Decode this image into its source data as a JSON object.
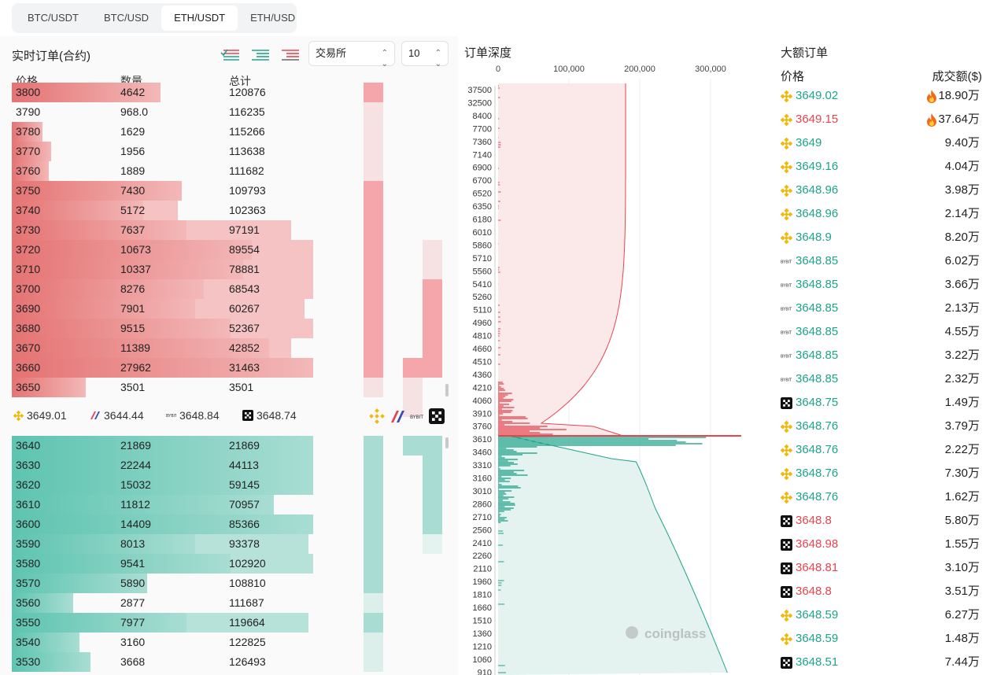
{
  "tabs": [
    {
      "label": "BTC/USDT",
      "active": false
    },
    {
      "label": "BTC/USD",
      "active": false
    },
    {
      "label": "ETH/USDT",
      "active": true
    },
    {
      "label": "ETH/USD",
      "active": false
    }
  ],
  "orderbook": {
    "title": "实时订单(合约)",
    "exchange_select": "交易所",
    "depth_select": "10",
    "headers": {
      "price": "价格",
      "qty": "数量",
      "total": "总计"
    },
    "colors": {
      "ask_bar": "#e57373",
      "ask_light": "#f3b8b8",
      "bid_bar": "#5dc4b0",
      "bid_light": "#a9ddd3"
    },
    "asks": [
      {
        "price": "3800",
        "qty": "4642",
        "total": "120876",
        "vol_frac": 0.34,
        "tot_frac": 0
      },
      {
        "price": "3790",
        "qty": "968.0",
        "total": "116235",
        "vol_frac": 0.0,
        "tot_frac": 0
      },
      {
        "price": "3780",
        "qty": "1629",
        "total": "115266",
        "vol_frac": 0.07,
        "tot_frac": 0
      },
      {
        "price": "3770",
        "qty": "1956",
        "total": "113638",
        "vol_frac": 0.09,
        "tot_frac": 0
      },
      {
        "price": "3760",
        "qty": "1889",
        "total": "111682",
        "vol_frac": 0.085,
        "tot_frac": 0
      },
      {
        "price": "3750",
        "qty": "7430",
        "total": "109793",
        "vol_frac": 0.39,
        "tot_frac": 0.39
      },
      {
        "price": "3740",
        "qty": "5172",
        "total": "102363",
        "vol_frac": 0.3,
        "tot_frac": 0.38
      },
      {
        "price": "3730",
        "qty": "7637",
        "total": "97191",
        "vol_frac": 0.4,
        "tot_frac": 0.64
      },
      {
        "price": "3720",
        "qty": "10673",
        "total": "89554",
        "vol_frac": 0.55,
        "tot_frac": 0.69
      },
      {
        "price": "3710",
        "qty": "10337",
        "total": "78881",
        "vol_frac": 0.53,
        "tot_frac": 0.69
      },
      {
        "price": "3700",
        "qty": "8276",
        "total": "68543",
        "vol_frac": 0.44,
        "tot_frac": 0.69
      },
      {
        "price": "3690",
        "qty": "7901",
        "total": "60267",
        "vol_frac": 0.42,
        "tot_frac": 0.67
      },
      {
        "price": "3680",
        "qty": "9515",
        "total": "52367",
        "vol_frac": 0.5,
        "tot_frac": 0.69
      },
      {
        "price": "3670",
        "qty": "11389",
        "total": "42852",
        "vol_frac": 0.59,
        "tot_frac": 0.64
      },
      {
        "price": "3660",
        "qty": "27962",
        "total": "31463",
        "vol_frac": 0.69,
        "tot_frac": 0.69
      },
      {
        "price": "3650",
        "qty": "3501",
        "total": "3501",
        "vol_frac": 0.17,
        "tot_frac": 0
      }
    ],
    "ticker": [
      {
        "exchange": "binance-icon",
        "price": "3649.01"
      },
      {
        "exchange": "bitmex-icon",
        "price": "3644.44"
      },
      {
        "exchange": "bybit-icon",
        "price": "3648.84"
      },
      {
        "exchange": "okx-icon",
        "price": "3648.74"
      }
    ],
    "bids": [
      {
        "price": "3640",
        "qty": "21869",
        "total": "21869",
        "vol_frac": 0.69,
        "tot_frac": 0.69
      },
      {
        "price": "3630",
        "qty": "22244",
        "total": "44113",
        "vol_frac": 0.69,
        "tot_frac": 0.69
      },
      {
        "price": "3620",
        "qty": "15032",
        "total": "59145",
        "vol_frac": 0.69,
        "tot_frac": 0.69
      },
      {
        "price": "3610",
        "qty": "11812",
        "total": "70957",
        "vol_frac": 0.6,
        "tot_frac": 0.6
      },
      {
        "price": "3600",
        "qty": "14409",
        "total": "85366",
        "vol_frac": 0.69,
        "tot_frac": 0.69
      },
      {
        "price": "3590",
        "qty": "8013",
        "total": "93378",
        "vol_frac": 0.42,
        "tot_frac": 0.68
      },
      {
        "price": "3580",
        "qty": "9541",
        "total": "102920",
        "vol_frac": 0.5,
        "tot_frac": 0.69
      },
      {
        "price": "3570",
        "qty": "5890",
        "total": "108810",
        "vol_frac": 0.31,
        "tot_frac": 0
      },
      {
        "price": "3560",
        "qty": "2877",
        "total": "111687",
        "vol_frac": 0.14,
        "tot_frac": 0
      },
      {
        "price": "3550",
        "qty": "7977",
        "total": "119664",
        "vol_frac": 0.4,
        "tot_frac": 0.68
      },
      {
        "price": "3540",
        "qty": "3160",
        "total": "122825",
        "vol_frac": 0.155,
        "tot_frac": 0
      },
      {
        "price": "3530",
        "qty": "3668",
        "total": "126493",
        "vol_frac": 0.18,
        "tot_frac": 0
      }
    ]
  },
  "depth": {
    "title": "订单深度",
    "x_ticks": [
      "0",
      "100,000",
      "200,000",
      "300,000"
    ],
    "price_ticks": [
      "37500",
      "32500",
      "8400",
      "7700",
      "7360",
      "7140",
      "6900",
      "6700",
      "6520",
      "6350",
      "6180",
      "6010",
      "5860",
      "5710",
      "5560",
      "5410",
      "5260",
      "5110",
      "4960",
      "4810",
      "4660",
      "4510",
      "4360",
      "4210",
      "4060",
      "3910",
      "3760",
      "3610",
      "3460",
      "3310",
      "3160",
      "3010",
      "2860",
      "2710",
      "2560",
      "2410",
      "2260",
      "2110",
      "1960",
      "1810",
      "1660",
      "1510",
      "1360",
      "1210",
      "1060",
      "910"
    ],
    "watermark": "coinglass",
    "colors": {
      "ask": "#e5454f",
      "ask_fill": "#fbe9ea",
      "bid": "#1fa38a",
      "bid_fill": "#e4f3ef"
    }
  },
  "big_orders": {
    "title": "大额订单",
    "header_price": "价格",
    "header_amount": "成交额($)",
    "rows": [
      {
        "icon": "binance-icon",
        "price": "3649.02",
        "side": "up",
        "amount": "18.90万",
        "hot": true
      },
      {
        "icon": "binance-icon",
        "price": "3649.15",
        "side": "down",
        "amount": "37.64万",
        "hot": true
      },
      {
        "icon": "binance-icon",
        "price": "3649",
        "side": "up",
        "amount": "9.40万",
        "hot": false
      },
      {
        "icon": "binance-icon",
        "price": "3649.16",
        "side": "up",
        "amount": "4.04万",
        "hot": false
      },
      {
        "icon": "binance-icon",
        "price": "3648.96",
        "side": "up",
        "amount": "3.98万",
        "hot": false
      },
      {
        "icon": "binance-icon",
        "price": "3648.96",
        "side": "up",
        "amount": "2.14万",
        "hot": false
      },
      {
        "icon": "binance-icon",
        "price": "3648.9",
        "side": "up",
        "amount": "8.20万",
        "hot": false
      },
      {
        "icon": "bybit-icon",
        "price": "3648.85",
        "side": "up",
        "amount": "6.02万",
        "hot": false
      },
      {
        "icon": "bybit-icon",
        "price": "3648.85",
        "side": "up",
        "amount": "3.66万",
        "hot": false
      },
      {
        "icon": "bybit-icon",
        "price": "3648.85",
        "side": "up",
        "amount": "2.13万",
        "hot": false
      },
      {
        "icon": "bybit-icon",
        "price": "3648.85",
        "side": "up",
        "amount": "4.55万",
        "hot": false
      },
      {
        "icon": "bybit-icon",
        "price": "3648.85",
        "side": "up",
        "amount": "3.22万",
        "hot": false
      },
      {
        "icon": "bybit-icon",
        "price": "3648.85",
        "side": "up",
        "amount": "2.32万",
        "hot": false
      },
      {
        "icon": "okx-icon",
        "price": "3648.75",
        "side": "up",
        "amount": "1.49万",
        "hot": false
      },
      {
        "icon": "binance-icon",
        "price": "3648.76",
        "side": "up",
        "amount": "3.79万",
        "hot": false
      },
      {
        "icon": "binance-icon",
        "price": "3648.76",
        "side": "up",
        "amount": "2.22万",
        "hot": false
      },
      {
        "icon": "binance-icon",
        "price": "3648.76",
        "side": "up",
        "amount": "7.30万",
        "hot": false
      },
      {
        "icon": "binance-icon",
        "price": "3648.76",
        "side": "up",
        "amount": "1.62万",
        "hot": false
      },
      {
        "icon": "okx-icon",
        "price": "3648.8",
        "side": "down",
        "amount": "5.80万",
        "hot": false
      },
      {
        "icon": "okx-icon",
        "price": "3648.98",
        "side": "down",
        "amount": "1.55万",
        "hot": false
      },
      {
        "icon": "okx-icon",
        "price": "3648.81",
        "side": "down",
        "amount": "3.10万",
        "hot": false
      },
      {
        "icon": "okx-icon",
        "price": "3648.8",
        "side": "down",
        "amount": "3.51万",
        "hot": false
      },
      {
        "icon": "binance-icon",
        "price": "3648.59",
        "side": "up",
        "amount": "6.27万",
        "hot": false
      },
      {
        "icon": "binance-icon",
        "price": "3648.59",
        "side": "up",
        "amount": "1.48万",
        "hot": false
      },
      {
        "icon": "okx-icon",
        "price": "3648.51",
        "side": "up",
        "amount": "7.44万",
        "hot": false
      }
    ]
  }
}
